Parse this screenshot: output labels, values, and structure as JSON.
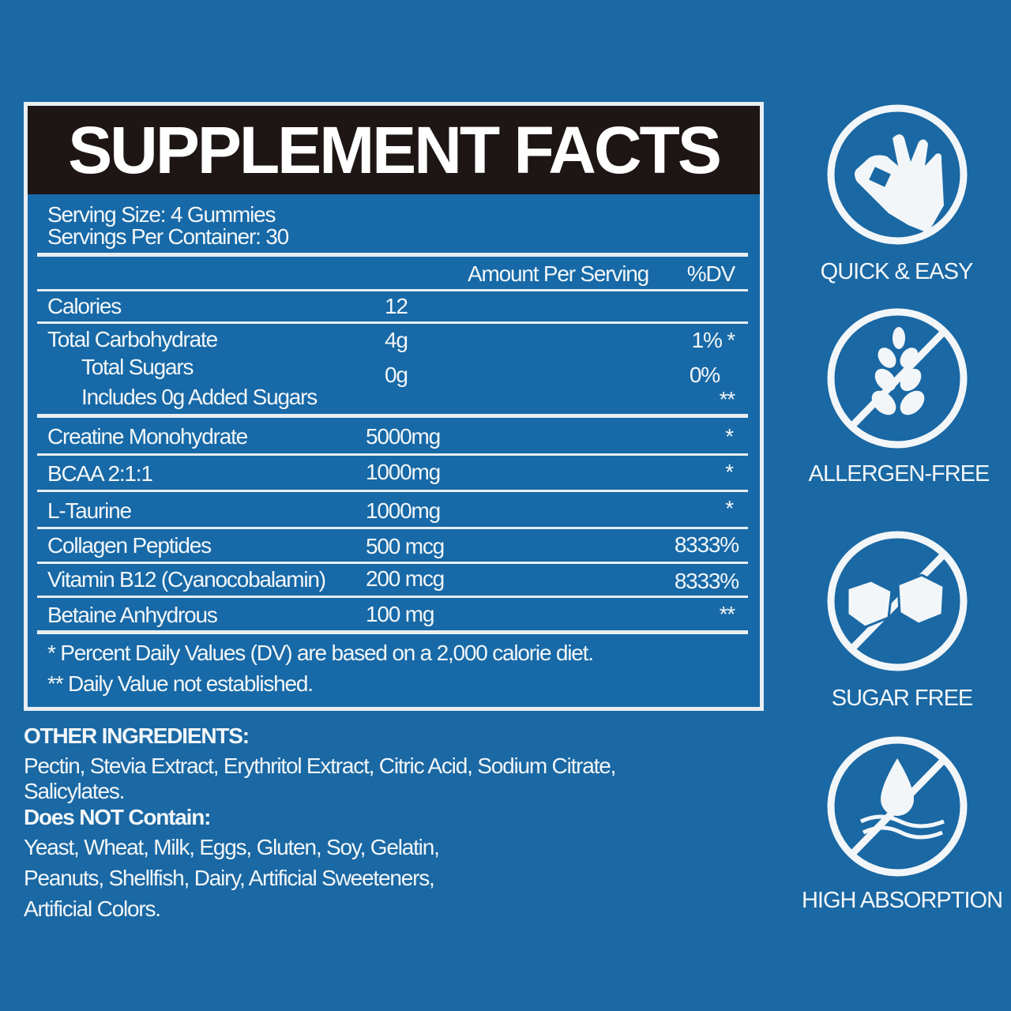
{
  "title": "SUPPLEMENT FACTS",
  "serving_size": "Serving Size: 4 Gummies",
  "servings_per_container": "Servings Per Container: 30",
  "col_amount": "Amount Per Serving",
  "col_dv": "%DV",
  "rows": [
    {
      "name": "Calories",
      "amount": "12",
      "dv": ""
    },
    {
      "name": "Total Carbohydrate",
      "amount": "4g",
      "dv": "1% *"
    },
    {
      "name": "Total Sugars",
      "amount": "0g",
      "dv": "0%"
    },
    {
      "name": "Includes 0g Added Sugars",
      "amount": "",
      "dv": "**"
    },
    {
      "name": "Creatine Monohydrate",
      "amount": "5000mg",
      "dv": "*"
    },
    {
      "name": "BCAA 2:1:1",
      "amount": "1000mg",
      "dv": "*"
    },
    {
      "name": "L-Taurine",
      "amount": "1000mg",
      "dv": "*"
    },
    {
      "name": "Collagen Peptides",
      "amount": "500 mcg",
      "dv": "8333%"
    },
    {
      "name": "Vitamin B12 (Cyanocobalamin)",
      "amount": "200 mcg",
      "dv": "8333%"
    },
    {
      "name": "Betaine Anhydrous",
      "amount": "100 mg",
      "dv": "**"
    }
  ],
  "footnote1": "* Percent Daily Values (DV) are based on a 2,000 calorie diet.",
  "footnote2": "** Daily Value not established.",
  "other_heading": "OTHER INGREDIENTS:",
  "other_line1": "Pectin, Stevia Extract, Erythritol Extract, Citric Acid, Sodium Citrate,",
  "other_line2": "Salicylates.",
  "not_heading": "Does NOT Contain:",
  "not_line1": "Yeast, Wheat, Milk, Eggs, Gluten, Soy, Gelatin,",
  "not_line2": "Peanuts, Shellfish, Dairy, Artificial Sweeteners,",
  "not_line3": "Artificial Colors.",
  "badges": [
    {
      "icon": "ok-hand-icon",
      "label": "QUICK & EASY"
    },
    {
      "icon": "no-wheat-icon",
      "label": "ALLERGEN-FREE"
    },
    {
      "icon": "no-sugar-cube-icon",
      "label": "SUGAR FREE"
    },
    {
      "icon": "water-drop-icon",
      "label": "HIGH ABSORPTION"
    }
  ],
  "colors": {
    "background": "#1a68a4",
    "header": "#1e1614",
    "text": "#f2f6f8"
  }
}
